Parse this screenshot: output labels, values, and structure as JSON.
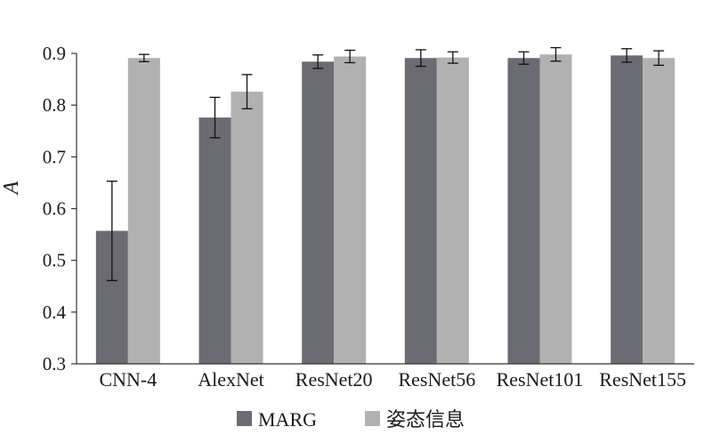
{
  "chart_data": {
    "type": "bar",
    "title": "",
    "xlabel": "",
    "ylabel": "A",
    "ylim": [
      0.3,
      0.9
    ],
    "yticks": [
      "0.3",
      "0.4",
      "0.5",
      "0.6",
      "0.7",
      "0.8",
      "0.9"
    ],
    "grid": false,
    "legend_position": "bottom",
    "categories": [
      "CNN-4",
      "AlexNet",
      "ResNet20",
      "ResNet56",
      "ResNet101",
      "ResNet155"
    ],
    "series": [
      {
        "name": "MARG",
        "color": "#6b6b73",
        "values": [
          0.557,
          0.776,
          0.884,
          0.891,
          0.891,
          0.896
        ],
        "errors": [
          0.096,
          0.039,
          0.013,
          0.016,
          0.012,
          0.013
        ]
      },
      {
        "name": "姿态信息",
        "color": "#b1b1b1",
        "values": [
          0.891,
          0.826,
          0.894,
          0.892,
          0.898,
          0.891
        ],
        "errors": [
          0.007,
          0.033,
          0.012,
          0.011,
          0.013,
          0.014
        ]
      }
    ]
  }
}
